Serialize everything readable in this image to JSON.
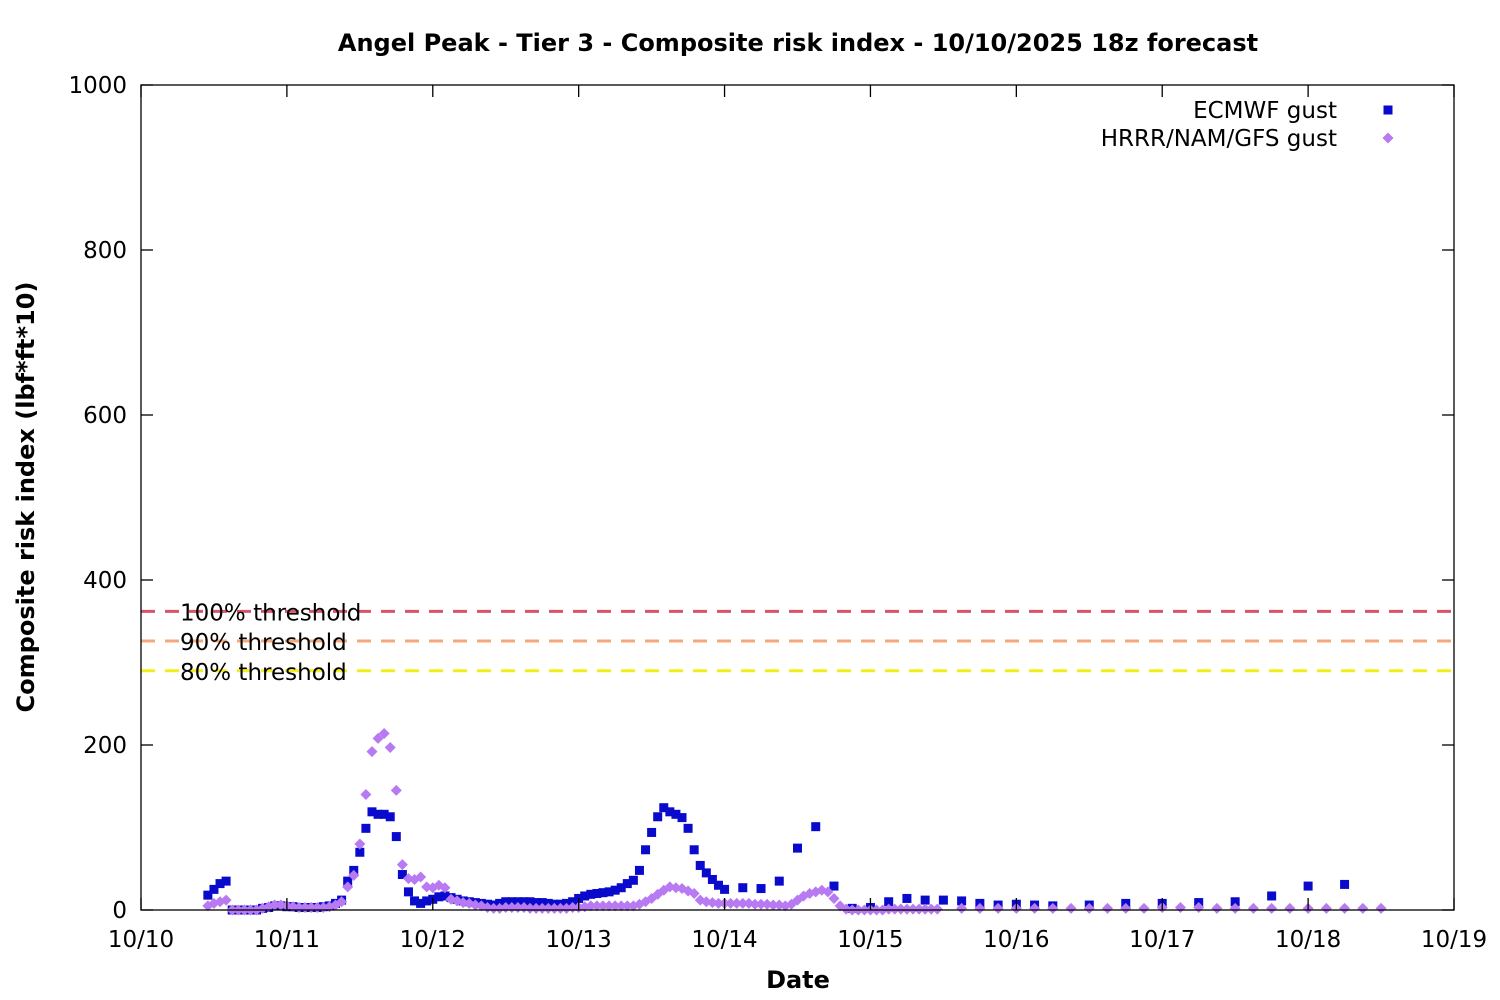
{
  "chart_data": {
    "type": "scatter",
    "title": "Angel Peak - Tier 3 - Composite risk index - 10/10/2025 18z forecast",
    "xlabel": "Date",
    "ylabel": "Composite risk index (lbf*ft*10)",
    "xlim": [
      "2025-10-10",
      "2025-10-19"
    ],
    "ylim": [
      0,
      1000
    ],
    "x_ticks": [
      "10/10",
      "10/11",
      "10/12",
      "10/13",
      "10/14",
      "10/15",
      "10/16",
      "10/17",
      "10/18",
      "10/19"
    ],
    "y_ticks": [
      "0",
      "200",
      "400",
      "600",
      "800",
      "1000"
    ],
    "grid": false,
    "legend_position": "top-right",
    "thresholds": [
      {
        "name": "100% threshold",
        "value": 362,
        "color": "#d9536b"
      },
      {
        "name": "90% threshold",
        "value": 326,
        "color": "#f5a97a"
      },
      {
        "name": "80% threshold",
        "value": 290,
        "color": "#f2ef18"
      }
    ],
    "series": [
      {
        "name": "ECMWF gust",
        "marker": "square",
        "color": "#0a0acd",
        "points": [
          [
            "2025-10-10 11:00",
            18
          ],
          [
            "2025-10-10 12:00",
            25
          ],
          [
            "2025-10-10 13:00",
            32
          ],
          [
            "2025-10-10 14:00",
            35
          ],
          [
            "2025-10-10 15:00",
            0
          ],
          [
            "2025-10-10 16:00",
            0
          ],
          [
            "2025-10-10 17:00",
            0
          ],
          [
            "2025-10-10 18:00",
            0
          ],
          [
            "2025-10-10 19:00",
            0
          ],
          [
            "2025-10-10 20:00",
            2
          ],
          [
            "2025-10-10 21:00",
            3
          ],
          [
            "2025-10-10 22:00",
            5
          ],
          [
            "2025-10-10 23:00",
            5
          ],
          [
            "2025-10-11 00:00",
            4
          ],
          [
            "2025-10-11 01:00",
            4
          ],
          [
            "2025-10-11 02:00",
            3
          ],
          [
            "2025-10-11 03:00",
            3
          ],
          [
            "2025-10-11 04:00",
            3
          ],
          [
            "2025-10-11 05:00",
            3
          ],
          [
            "2025-10-11 06:00",
            4
          ],
          [
            "2025-10-11 07:00",
            5
          ],
          [
            "2025-10-11 08:00",
            8
          ],
          [
            "2025-10-11 09:00",
            12
          ],
          [
            "2025-10-11 10:00",
            35
          ],
          [
            "2025-10-11 11:00",
            48
          ],
          [
            "2025-10-11 12:00",
            70
          ],
          [
            "2025-10-11 13:00",
            99
          ],
          [
            "2025-10-11 14:00",
            119
          ],
          [
            "2025-10-11 15:00",
            116
          ],
          [
            "2025-10-11 16:00",
            116
          ],
          [
            "2025-10-11 17:00",
            113
          ],
          [
            "2025-10-11 18:00",
            89
          ],
          [
            "2025-10-11 19:00",
            43
          ],
          [
            "2025-10-11 20:00",
            22
          ],
          [
            "2025-10-11 21:00",
            11
          ],
          [
            "2025-10-11 22:00",
            8
          ],
          [
            "2025-10-11 23:00",
            11
          ],
          [
            "2025-10-12 00:00",
            13
          ],
          [
            "2025-10-12 01:00",
            16
          ],
          [
            "2025-10-12 02:00",
            17
          ],
          [
            "2025-10-12 03:00",
            15
          ],
          [
            "2025-10-12 04:00",
            13
          ],
          [
            "2025-10-12 05:00",
            11
          ],
          [
            "2025-10-12 06:00",
            10
          ],
          [
            "2025-10-12 07:00",
            9
          ],
          [
            "2025-10-12 08:00",
            8
          ],
          [
            "2025-10-12 09:00",
            7
          ],
          [
            "2025-10-12 10:00",
            6
          ],
          [
            "2025-10-12 11:00",
            8
          ],
          [
            "2025-10-12 12:00",
            10
          ],
          [
            "2025-10-12 13:00",
            10
          ],
          [
            "2025-10-12 14:00",
            10
          ],
          [
            "2025-10-12 15:00",
            10
          ],
          [
            "2025-10-12 16:00",
            10
          ],
          [
            "2025-10-12 17:00",
            9
          ],
          [
            "2025-10-12 18:00",
            9
          ],
          [
            "2025-10-12 19:00",
            8
          ],
          [
            "2025-10-12 20:00",
            7
          ],
          [
            "2025-10-12 21:00",
            7
          ],
          [
            "2025-10-12 22:00",
            8
          ],
          [
            "2025-10-12 23:00",
            10
          ],
          [
            "2025-10-13 00:00",
            14
          ],
          [
            "2025-10-13 01:00",
            17
          ],
          [
            "2025-10-13 02:00",
            19
          ],
          [
            "2025-10-13 03:00",
            20
          ],
          [
            "2025-10-13 04:00",
            21
          ],
          [
            "2025-10-13 05:00",
            22
          ],
          [
            "2025-10-13 06:00",
            24
          ],
          [
            "2025-10-13 07:00",
            27
          ],
          [
            "2025-10-13 08:00",
            32
          ],
          [
            "2025-10-13 09:00",
            36
          ],
          [
            "2025-10-13 10:00",
            48
          ],
          [
            "2025-10-13 11:00",
            73
          ],
          [
            "2025-10-13 12:00",
            94
          ],
          [
            "2025-10-13 13:00",
            113
          ],
          [
            "2025-10-13 14:00",
            124
          ],
          [
            "2025-10-13 15:00",
            119
          ],
          [
            "2025-10-13 16:00",
            116
          ],
          [
            "2025-10-13 17:00",
            112
          ],
          [
            "2025-10-13 18:00",
            99
          ],
          [
            "2025-10-13 19:00",
            73
          ],
          [
            "2025-10-13 20:00",
            54
          ],
          [
            "2025-10-13 21:00",
            45
          ],
          [
            "2025-10-13 22:00",
            37
          ],
          [
            "2025-10-13 23:00",
            30
          ],
          [
            "2025-10-14 00:00",
            25
          ],
          [
            "2025-10-14 03:00",
            27
          ],
          [
            "2025-10-14 06:00",
            26
          ],
          [
            "2025-10-14 09:00",
            35
          ],
          [
            "2025-10-14 12:00",
            75
          ],
          [
            "2025-10-14 15:00",
            101
          ],
          [
            "2025-10-14 18:00",
            29
          ],
          [
            "2025-10-14 21:00",
            2
          ],
          [
            "2025-10-15 00:00",
            3
          ],
          [
            "2025-10-15 03:00",
            10
          ],
          [
            "2025-10-15 06:00",
            14
          ],
          [
            "2025-10-15 09:00",
            12
          ],
          [
            "2025-10-15 12:00",
            12
          ],
          [
            "2025-10-15 15:00",
            11
          ],
          [
            "2025-10-15 18:00",
            8
          ],
          [
            "2025-10-15 21:00",
            6
          ],
          [
            "2025-10-16 00:00",
            7
          ],
          [
            "2025-10-16 03:00",
            6
          ],
          [
            "2025-10-16 06:00",
            5
          ],
          [
            "2025-10-16 12:00",
            6
          ],
          [
            "2025-10-16 18:00",
            8
          ],
          [
            "2025-10-17 00:00",
            8
          ],
          [
            "2025-10-17 06:00",
            9
          ],
          [
            "2025-10-17 12:00",
            10
          ],
          [
            "2025-10-17 18:00",
            17
          ],
          [
            "2025-10-18 00:00",
            29
          ],
          [
            "2025-10-18 06:00",
            31
          ]
        ]
      },
      {
        "name": "HRRR/NAM/GFS gust",
        "marker": "diamond",
        "color": "#b77af2",
        "points": [
          [
            "2025-10-10 11:00",
            5
          ],
          [
            "2025-10-10 12:00",
            8
          ],
          [
            "2025-10-10 13:00",
            10
          ],
          [
            "2025-10-10 14:00",
            12
          ],
          [
            "2025-10-10 15:00",
            0
          ],
          [
            "2025-10-10 16:00",
            0
          ],
          [
            "2025-10-10 17:00",
            0
          ],
          [
            "2025-10-10 18:00",
            0
          ],
          [
            "2025-10-10 19:00",
            0
          ],
          [
            "2025-10-10 20:00",
            2
          ],
          [
            "2025-10-10 21:00",
            4
          ],
          [
            "2025-10-10 22:00",
            6
          ],
          [
            "2025-10-10 23:00",
            6
          ],
          [
            "2025-10-11 00:00",
            5
          ],
          [
            "2025-10-11 01:00",
            4
          ],
          [
            "2025-10-11 02:00",
            3
          ],
          [
            "2025-10-11 03:00",
            3
          ],
          [
            "2025-10-11 04:00",
            3
          ],
          [
            "2025-10-11 05:00",
            3
          ],
          [
            "2025-10-11 06:00",
            3
          ],
          [
            "2025-10-11 07:00",
            4
          ],
          [
            "2025-10-11 08:00",
            6
          ],
          [
            "2025-10-11 09:00",
            10
          ],
          [
            "2025-10-11 10:00",
            28
          ],
          [
            "2025-10-11 11:00",
            42
          ],
          [
            "2025-10-11 12:00",
            80
          ],
          [
            "2025-10-11 13:00",
            140
          ],
          [
            "2025-10-11 14:00",
            192
          ],
          [
            "2025-10-11 15:00",
            208
          ],
          [
            "2025-10-11 16:00",
            214
          ],
          [
            "2025-10-11 17:00",
            197
          ],
          [
            "2025-10-11 18:00",
            145
          ],
          [
            "2025-10-11 19:00",
            55
          ],
          [
            "2025-10-11 20:00",
            38
          ],
          [
            "2025-10-11 21:00",
            37
          ],
          [
            "2025-10-11 22:00",
            40
          ],
          [
            "2025-10-11 23:00",
            28
          ],
          [
            "2025-10-12 00:00",
            27
          ],
          [
            "2025-10-12 01:00",
            30
          ],
          [
            "2025-10-12 02:00",
            27
          ],
          [
            "2025-10-12 03:00",
            13
          ],
          [
            "2025-10-12 04:00",
            11
          ],
          [
            "2025-10-12 05:00",
            9
          ],
          [
            "2025-10-12 06:00",
            8
          ],
          [
            "2025-10-12 07:00",
            6
          ],
          [
            "2025-10-12 08:00",
            5
          ],
          [
            "2025-10-12 09:00",
            3
          ],
          [
            "2025-10-12 10:00",
            2
          ],
          [
            "2025-10-12 11:00",
            2
          ],
          [
            "2025-10-12 12:00",
            3
          ],
          [
            "2025-10-12 13:00",
            3
          ],
          [
            "2025-10-12 14:00",
            3
          ],
          [
            "2025-10-12 15:00",
            3
          ],
          [
            "2025-10-12 16:00",
            2
          ],
          [
            "2025-10-12 17:00",
            2
          ],
          [
            "2025-10-12 18:00",
            2
          ],
          [
            "2025-10-12 19:00",
            2
          ],
          [
            "2025-10-12 20:00",
            2
          ],
          [
            "2025-10-12 21:00",
            2
          ],
          [
            "2025-10-12 22:00",
            2
          ],
          [
            "2025-10-12 23:00",
            3
          ],
          [
            "2025-10-13 00:00",
            3
          ],
          [
            "2025-10-13 01:00",
            4
          ],
          [
            "2025-10-13 02:00",
            5
          ],
          [
            "2025-10-13 03:00",
            5
          ],
          [
            "2025-10-13 04:00",
            5
          ],
          [
            "2025-10-13 05:00",
            5
          ],
          [
            "2025-10-13 06:00",
            5
          ],
          [
            "2025-10-13 07:00",
            5
          ],
          [
            "2025-10-13 08:00",
            5
          ],
          [
            "2025-10-13 09:00",
            5
          ],
          [
            "2025-10-13 10:00",
            7
          ],
          [
            "2025-10-13 11:00",
            10
          ],
          [
            "2025-10-13 12:00",
            14
          ],
          [
            "2025-10-13 13:00",
            19
          ],
          [
            "2025-10-13 14:00",
            24
          ],
          [
            "2025-10-13 15:00",
            28
          ],
          [
            "2025-10-13 16:00",
            27
          ],
          [
            "2025-10-13 17:00",
            26
          ],
          [
            "2025-10-13 18:00",
            23
          ],
          [
            "2025-10-13 19:00",
            20
          ],
          [
            "2025-10-13 20:00",
            12
          ],
          [
            "2025-10-13 21:00",
            10
          ],
          [
            "2025-10-13 22:00",
            9
          ],
          [
            "2025-10-13 23:00",
            8
          ],
          [
            "2025-10-14 00:00",
            8
          ],
          [
            "2025-10-14 01:00",
            8
          ],
          [
            "2025-10-14 02:00",
            8
          ],
          [
            "2025-10-14 03:00",
            8
          ],
          [
            "2025-10-14 04:00",
            8
          ],
          [
            "2025-10-14 05:00",
            7
          ],
          [
            "2025-10-14 06:00",
            7
          ],
          [
            "2025-10-14 07:00",
            7
          ],
          [
            "2025-10-14 08:00",
            6
          ],
          [
            "2025-10-14 09:00",
            6
          ],
          [
            "2025-10-14 10:00",
            5
          ],
          [
            "2025-10-14 11:00",
            7
          ],
          [
            "2025-10-14 12:00",
            12
          ],
          [
            "2025-10-14 13:00",
            17
          ],
          [
            "2025-10-14 14:00",
            20
          ],
          [
            "2025-10-14 15:00",
            22
          ],
          [
            "2025-10-14 16:00",
            24
          ],
          [
            "2025-10-14 17:00",
            22
          ],
          [
            "2025-10-14 18:00",
            14
          ],
          [
            "2025-10-14 19:00",
            5
          ],
          [
            "2025-10-14 20:00",
            1
          ],
          [
            "2025-10-14 21:00",
            0
          ],
          [
            "2025-10-14 22:00",
            0
          ],
          [
            "2025-10-14 23:00",
            0
          ],
          [
            "2025-10-15 00:00",
            0
          ],
          [
            "2025-10-15 01:00",
            0
          ],
          [
            "2025-10-15 02:00",
            0
          ],
          [
            "2025-10-15 03:00",
            1
          ],
          [
            "2025-10-15 04:00",
            1
          ],
          [
            "2025-10-15 05:00",
            1
          ],
          [
            "2025-10-15 06:00",
            1
          ],
          [
            "2025-10-15 07:00",
            1
          ],
          [
            "2025-10-15 08:00",
            1
          ],
          [
            "2025-10-15 09:00",
            1
          ],
          [
            "2025-10-15 10:00",
            1
          ],
          [
            "2025-10-15 11:00",
            1
          ],
          [
            "2025-10-15 15:00",
            2
          ],
          [
            "2025-10-15 18:00",
            2
          ],
          [
            "2025-10-15 21:00",
            2
          ],
          [
            "2025-10-16 00:00",
            2
          ],
          [
            "2025-10-16 03:00",
            2
          ],
          [
            "2025-10-16 06:00",
            2
          ],
          [
            "2025-10-16 09:00",
            2
          ],
          [
            "2025-10-16 12:00",
            2
          ],
          [
            "2025-10-16 15:00",
            2
          ],
          [
            "2025-10-16 18:00",
            2
          ],
          [
            "2025-10-16 21:00",
            2
          ],
          [
            "2025-10-17 00:00",
            3
          ],
          [
            "2025-10-17 03:00",
            3
          ],
          [
            "2025-10-17 06:00",
            3
          ],
          [
            "2025-10-17 09:00",
            2
          ],
          [
            "2025-10-17 12:00",
            2
          ],
          [
            "2025-10-17 15:00",
            2
          ],
          [
            "2025-10-17 18:00",
            2
          ],
          [
            "2025-10-17 21:00",
            2
          ],
          [
            "2025-10-18 00:00",
            2
          ],
          [
            "2025-10-18 03:00",
            2
          ],
          [
            "2025-10-18 06:00",
            2
          ],
          [
            "2025-10-18 09:00",
            2
          ],
          [
            "2025-10-18 12:00",
            2
          ]
        ]
      }
    ]
  }
}
